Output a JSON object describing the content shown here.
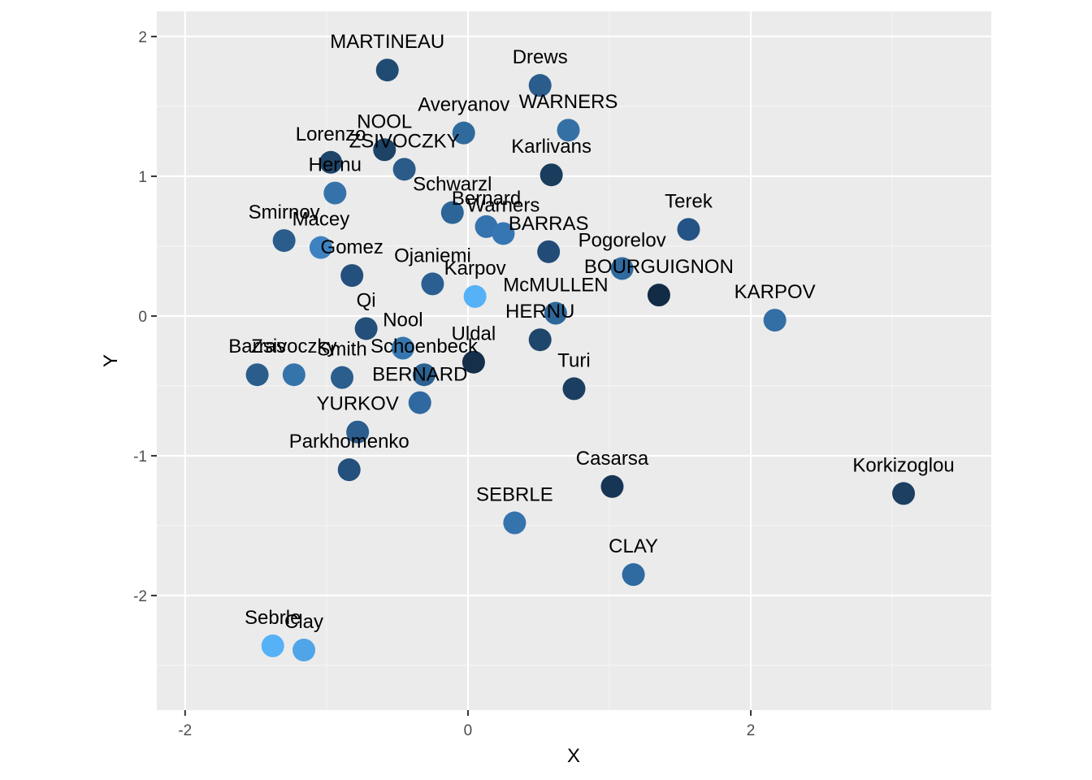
{
  "chart_data": {
    "type": "scatter",
    "xlabel": "X",
    "ylabel": "Y",
    "xlim": [
      -2.2,
      3.7
    ],
    "ylim": [
      -2.82,
      2.18
    ],
    "x_ticks": [
      -2,
      0,
      2
    ],
    "x_tick_labels": [
      "-2",
      "0",
      "2"
    ],
    "y_ticks": [
      2,
      1,
      0,
      -1,
      -2
    ],
    "y_tick_labels": [
      "2",
      "1",
      "0",
      "-1",
      "-2"
    ],
    "grid": true,
    "legend": "none",
    "colors": {
      "panel_background": "#ebebeb",
      "grid_major": "#ffffff",
      "grid_minor": "#f5f5f5",
      "tick_color": "#333333"
    },
    "points": [
      {
        "label": "MARTINEAU",
        "x": -0.57,
        "y": 1.76,
        "color": "#204b72"
      },
      {
        "label": "Drews",
        "x": 0.51,
        "y": 1.65,
        "color": "#2a5d8c"
      },
      {
        "label": "Averyanov",
        "x": -0.03,
        "y": 1.31,
        "color": "#2f6a9c"
      },
      {
        "label": "WARNERS",
        "x": 0.71,
        "y": 1.33,
        "color": "#3570a4"
      },
      {
        "label": "NOOL",
        "x": -0.59,
        "y": 1.19,
        "color": "#1c4266"
      },
      {
        "label": "Lorenzo",
        "x": -0.97,
        "y": 1.1,
        "color": "#1e4569"
      },
      {
        "label": "ZSIVOCZKY",
        "x": -0.45,
        "y": 1.05,
        "color": "#2a5b89"
      },
      {
        "label": "Karlivans",
        "x": 0.59,
        "y": 1.01,
        "color": "#1a3d5e"
      },
      {
        "label": "Hernu",
        "x": -0.94,
        "y": 0.88,
        "color": "#3572aa"
      },
      {
        "label": "Schwarzl",
        "x": -0.11,
        "y": 0.74,
        "color": "#2c6597"
      },
      {
        "label": "Bernard",
        "x": 0.13,
        "y": 0.64,
        "color": "#3473ad"
      },
      {
        "label": "Warners",
        "x": 0.25,
        "y": 0.59,
        "color": "#3676b2"
      },
      {
        "label": "Terek",
        "x": 1.56,
        "y": 0.62,
        "color": "#245385"
      },
      {
        "label": "Smirnov",
        "x": -1.3,
        "y": 0.54,
        "color": "#2a5d8c"
      },
      {
        "label": "Macey",
        "x": -1.04,
        "y": 0.49,
        "color": "#3f82c1"
      },
      {
        "label": "BARRAS",
        "x": 0.57,
        "y": 0.46,
        "color": "#224c77"
      },
      {
        "label": "Gomez",
        "x": -0.82,
        "y": 0.29,
        "color": "#23507c"
      },
      {
        "label": "Pogorelov",
        "x": 1.09,
        "y": 0.34,
        "color": "#306a9e"
      },
      {
        "label": "Ojaniemi",
        "x": -0.25,
        "y": 0.23,
        "color": "#2b5f91"
      },
      {
        "label": "BOURGUIGNON",
        "x": 1.35,
        "y": 0.15,
        "color": "#132c45"
      },
      {
        "label": "Karpov",
        "x": 0.05,
        "y": 0.14,
        "color": "#56b1f7"
      },
      {
        "label": "KARPOV",
        "x": 2.17,
        "y": -0.03,
        "color": "#336ea5"
      },
      {
        "label": "McMULLEN",
        "x": 0.62,
        "y": 0.02,
        "color": "#2e6699"
      },
      {
        "label": "Qi",
        "x": -0.72,
        "y": -0.09,
        "color": "#244f7a"
      },
      {
        "label": "HERNU",
        "x": 0.51,
        "y": -0.17,
        "color": "#1f466b"
      },
      {
        "label": "Nool",
        "x": -0.46,
        "y": -0.23,
        "color": "#3676ae"
      },
      {
        "label": "Uldal",
        "x": 0.04,
        "y": -0.33,
        "color": "#152f4a"
      },
      {
        "label": "Turi",
        "x": 0.75,
        "y": -0.52,
        "color": "#1b3f60"
      },
      {
        "label": "Barras",
        "x": -1.49,
        "y": -0.42,
        "color": "#2a5d8c"
      },
      {
        "label": "Zsivoczky",
        "x": -1.23,
        "y": -0.42,
        "color": "#3573ab"
      },
      {
        "label": "Smith",
        "x": -0.89,
        "y": -0.44,
        "color": "#2b5d8d"
      },
      {
        "label": "Schoenbeck",
        "x": -0.31,
        "y": -0.42,
        "color": "#2c6191"
      },
      {
        "label": "BERNARD",
        "x": -0.34,
        "y": -0.62,
        "color": "#3068a0"
      },
      {
        "label": "YURKOV",
        "x": -0.78,
        "y": -0.83,
        "color": "#2b5d8d"
      },
      {
        "label": "Parkhomenko",
        "x": -0.84,
        "y": -1.1,
        "color": "#23507c"
      },
      {
        "label": "Casarsa",
        "x": 1.02,
        "y": -1.22,
        "color": "#173554"
      },
      {
        "label": "Korkizoglou",
        "x": 3.08,
        "y": -1.27,
        "color": "#1c3f62"
      },
      {
        "label": "SEBRLE",
        "x": 0.33,
        "y": -1.48,
        "color": "#3573ad"
      },
      {
        "label": "CLAY",
        "x": 1.17,
        "y": -1.85,
        "color": "#2f6aa1"
      },
      {
        "label": "Sebrle",
        "x": -1.38,
        "y": -2.36,
        "color": "#56b1f7"
      },
      {
        "label": "Clay",
        "x": -1.16,
        "y": -2.39,
        "color": "#4fa5e8"
      }
    ]
  }
}
